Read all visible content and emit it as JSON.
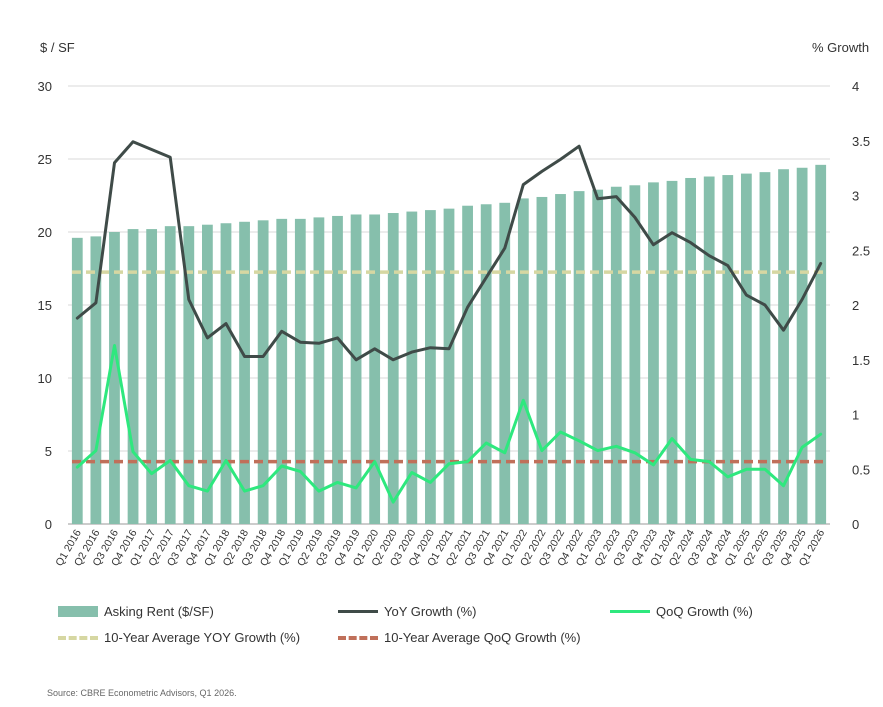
{
  "chart_data": {
    "type": "bar",
    "left_axis_title": "$ / SF",
    "right_axis_title": "% Growth",
    "left_ylim": [
      0,
      30
    ],
    "left_ticks": [
      0,
      5,
      10,
      15,
      20,
      25,
      30
    ],
    "right_ylim": [
      0,
      4
    ],
    "right_ticks": [
      "0",
      "0.5",
      "1",
      "1.5",
      "2",
      "2.5",
      "3",
      "3.5",
      "4"
    ],
    "categories": [
      "Q1 2016",
      "Q2 2016",
      "Q3 2016",
      "Q4 2016",
      "Q1 2017",
      "Q2 2017",
      "Q3 2017",
      "Q4 2017",
      "Q1 2018",
      "Q2 2018",
      "Q3 2018",
      "Q4 2018",
      "Q1 2019",
      "Q2 2019",
      "Q3 2019",
      "Q4 2019",
      "Q1 2020",
      "Q2 2020",
      "Q3 2020",
      "Q4 2020",
      "Q1 2021",
      "Q2 2021",
      "Q3 2021",
      "Q4 2021",
      "Q1 2022",
      "Q2 2022",
      "Q3 2022",
      "Q4 2022",
      "Q1 2023",
      "Q2 2023",
      "Q3 2023",
      "Q4 2023",
      "Q1 2024",
      "Q2 2024",
      "Q3 2024",
      "Q4 2024",
      "Q1 2025",
      "Q2 2025",
      "Q3 2025",
      "Q4 2025",
      "Q1 2026"
    ],
    "series": [
      {
        "name": "Asking Rent ($/SF)",
        "kind": "bar",
        "axis": "left",
        "color": "#86bfac",
        "values": [
          19.6,
          19.7,
          20.0,
          20.2,
          20.2,
          20.4,
          20.4,
          20.5,
          20.6,
          20.7,
          20.8,
          20.9,
          20.9,
          21.0,
          21.1,
          21.2,
          21.2,
          21.3,
          21.4,
          21.5,
          21.6,
          21.8,
          21.9,
          22.0,
          22.3,
          22.4,
          22.6,
          22.8,
          22.9,
          23.1,
          23.2,
          23.4,
          23.5,
          23.7,
          23.8,
          23.9,
          24.0,
          24.1,
          24.3,
          24.4,
          24.6
        ]
      },
      {
        "name": "YoY Growth (%)",
        "kind": "line",
        "axis": "right",
        "color": "#3f4b48",
        "values": [
          1.88,
          2.02,
          3.3,
          3.49,
          3.42,
          3.35,
          2.05,
          1.7,
          1.83,
          1.53,
          1.53,
          1.76,
          1.66,
          1.65,
          1.7,
          1.5,
          1.6,
          1.5,
          1.57,
          1.61,
          1.6,
          1.98,
          2.25,
          2.52,
          3.1,
          3.22,
          3.33,
          3.45,
          2.97,
          2.99,
          2.8,
          2.55,
          2.66,
          2.57,
          2.45,
          2.36,
          2.09,
          2.0,
          1.77,
          2.05,
          2.38
        ]
      },
      {
        "name": "QoQ Growth (%)",
        "kind": "line",
        "axis": "right",
        "color": "#2ee87e",
        "values": [
          0.52,
          0.67,
          1.63,
          0.66,
          0.46,
          0.58,
          0.35,
          0.3,
          0.58,
          0.3,
          0.35,
          0.53,
          0.48,
          0.3,
          0.38,
          0.33,
          0.57,
          0.2,
          0.47,
          0.38,
          0.55,
          0.57,
          0.74,
          0.65,
          1.13,
          0.67,
          0.84,
          0.76,
          0.67,
          0.71,
          0.65,
          0.54,
          0.78,
          0.59,
          0.57,
          0.43,
          0.5,
          0.5,
          0.35,
          0.7,
          0.82
        ]
      },
      {
        "name": "10-Year Average YOY Growth (%)",
        "kind": "dashed",
        "axis": "right",
        "color": "#d6d7a2",
        "value": 2.3
      },
      {
        "name": "10-Year Average QoQ Growth (%)",
        "kind": "dashed",
        "axis": "right",
        "color": "#c0705a",
        "value": 0.57
      }
    ],
    "grid": "horizontal",
    "legend_position": "bottom"
  },
  "source": "Source: CBRE Econometric Advisors, Q1 2026."
}
